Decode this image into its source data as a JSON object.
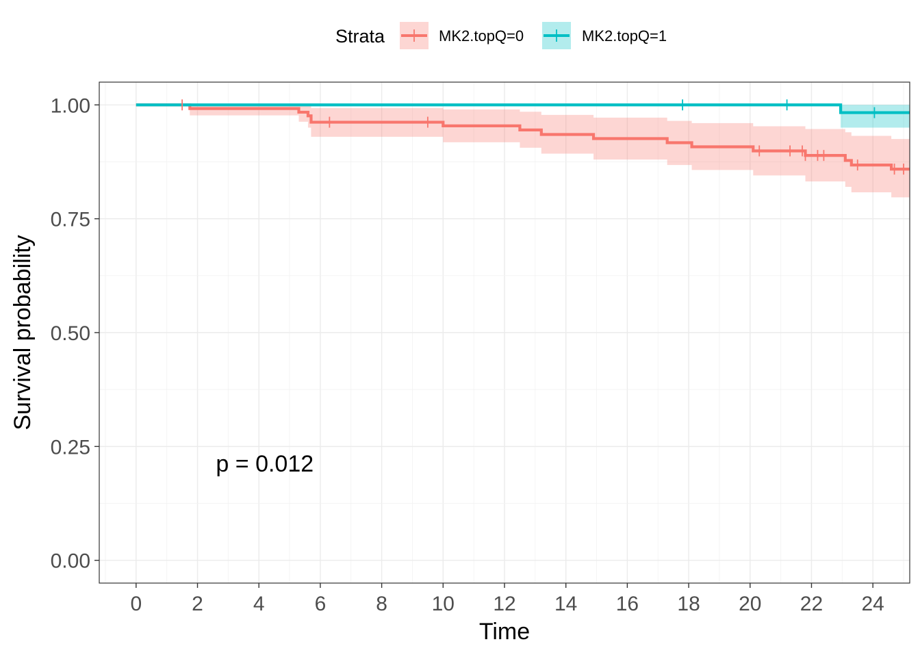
{
  "chart_data": {
    "type": "line",
    "subtype": "kaplan-meier survival curve",
    "xlabel": "Time",
    "ylabel": "Survival probability",
    "xlim": [
      -1.2,
      25.2
    ],
    "ylim": [
      -0.05,
      1.05
    ],
    "x_ticks": [
      0,
      2,
      4,
      6,
      8,
      10,
      12,
      14,
      16,
      18,
      20,
      22,
      24
    ],
    "x_tick_labels": [
      "0",
      "2",
      "4",
      "6",
      "8",
      "10",
      "12",
      "14",
      "16",
      "18",
      "20",
      "22",
      "24"
    ],
    "y_ticks": [
      0,
      0.25,
      0.5,
      0.75,
      1.0
    ],
    "y_tick_labels": [
      "0.00",
      "0.25",
      "0.50",
      "0.75",
      "1.00"
    ],
    "grid": true,
    "legend": {
      "title": "Strata",
      "position": "top",
      "entries": [
        "MK2.topQ=0",
        "MK2.topQ=1"
      ]
    },
    "annotation": "p = 0.012",
    "annotation_position": {
      "x": 2.6,
      "y": 0.195
    },
    "series": [
      {
        "name": "MK2.topQ=0",
        "color": "#F8766D",
        "band_color": "#F8766D",
        "steps": [
          {
            "x": 0,
            "y": 1.0,
            "lower": 1.0,
            "upper": 1.0
          },
          {
            "x": 1.75,
            "y": 0.992,
            "lower": 0.977,
            "upper": 1.0
          },
          {
            "x": 5.3,
            "y": 0.984,
            "lower": 0.963,
            "upper": 1.0
          },
          {
            "x": 5.6,
            "y": 0.976,
            "lower": 0.95,
            "upper": 1.0
          },
          {
            "x": 5.7,
            "y": 0.962,
            "lower": 0.93,
            "upper": 0.993
          },
          {
            "x": 10.0,
            "y": 0.954,
            "lower": 0.918,
            "upper": 0.99
          },
          {
            "x": 12.5,
            "y": 0.945,
            "lower": 0.906,
            "upper": 0.985
          },
          {
            "x": 13.2,
            "y": 0.935,
            "lower": 0.893,
            "upper": 0.978
          },
          {
            "x": 14.9,
            "y": 0.926,
            "lower": 0.88,
            "upper": 0.972
          },
          {
            "x": 17.3,
            "y": 0.917,
            "lower": 0.868,
            "upper": 0.965
          },
          {
            "x": 18.1,
            "y": 0.908,
            "lower": 0.857,
            "upper": 0.96
          },
          {
            "x": 20.1,
            "y": 0.899,
            "lower": 0.845,
            "upper": 0.953
          },
          {
            "x": 21.8,
            "y": 0.889,
            "lower": 0.832,
            "upper": 0.947
          },
          {
            "x": 23.1,
            "y": 0.878,
            "lower": 0.82,
            "upper": 0.94
          },
          {
            "x": 23.3,
            "y": 0.868,
            "lower": 0.808,
            "upper": 0.932
          },
          {
            "x": 24.6,
            "y": 0.859,
            "lower": 0.797,
            "upper": 0.925
          }
        ],
        "end_x": 25.2,
        "censor_x": [
          1.5,
          6.3,
          9.5,
          20.3,
          21.3,
          21.7,
          21.8,
          22.2,
          22.4,
          23.5,
          24.7,
          25.0
        ]
      },
      {
        "name": "MK2.topQ=1",
        "color": "#00BFC4",
        "band_color": "#00BFC4",
        "steps": [
          {
            "x": 0,
            "y": 1.0,
            "lower": 1.0,
            "upper": 1.0
          },
          {
            "x": 22.95,
            "y": 0.983,
            "lower": 0.95,
            "upper": 1.0
          }
        ],
        "end_x": 25.2,
        "censor_x": [
          17.8,
          21.2,
          24.05
        ]
      }
    ]
  }
}
